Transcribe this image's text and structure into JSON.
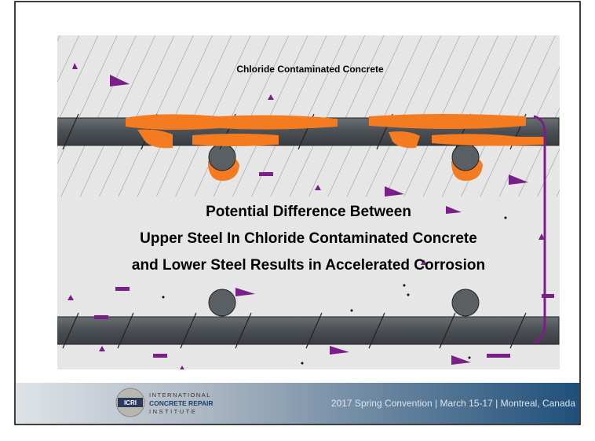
{
  "slide": {
    "diagram_label": "Chloride Contaminated Concrete",
    "caption": [
      "Potential Difference Between",
      "Upper Steel In Chloride Contaminated Concrete",
      "and Lower Steel Results in Accelerated Corrosion"
    ],
    "logo": {
      "badge": "ICRI",
      "lines": [
        "INTERNATIONAL",
        "CONCRETE REPAIR",
        "INSTITUTE"
      ]
    },
    "footer": "2017 Spring Convention | March 15-17 | Montreal, Canada"
  }
}
